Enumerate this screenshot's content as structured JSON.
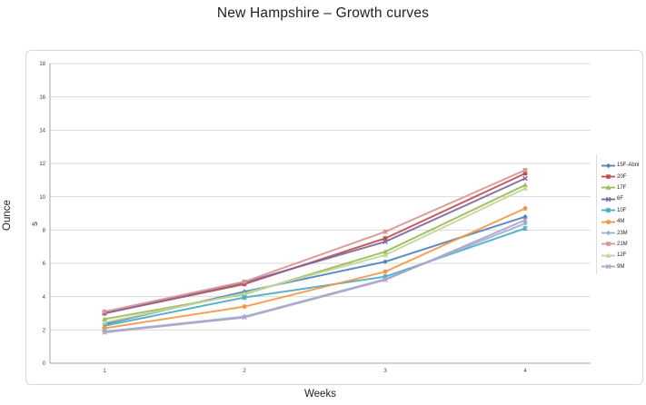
{
  "title": "New Hampshire – Growth curves",
  "chart_data": {
    "type": "line",
    "title": "New Hampshire – Growth curves",
    "xlabel": "Weeks",
    "ylabel": "Ounce",
    "ylabel_overlap_glyph": "s",
    "x": [
      1,
      2,
      3,
      4
    ],
    "ylim": [
      0,
      18
    ],
    "ytick_step": 2,
    "grid": true,
    "legend_position": "right",
    "series": [
      {
        "name": "15F-Abnl",
        "color": "#4F81BD",
        "marker": "diamond",
        "values": [
          2.35,
          4.3,
          6.1,
          8.8
        ]
      },
      {
        "name": "20F",
        "color": "#C0504D",
        "marker": "square",
        "values": [
          3.0,
          4.75,
          7.5,
          11.4
        ]
      },
      {
        "name": "17F",
        "color": "#9BBB59",
        "marker": "triangle",
        "values": [
          2.65,
          4.15,
          6.7,
          10.7
        ]
      },
      {
        "name": "6F",
        "color": "#8064A2",
        "marker": "x",
        "values": [
          3.0,
          4.85,
          7.3,
          11.1
        ]
      },
      {
        "name": "10F",
        "color": "#4BACC6",
        "marker": "asterisk",
        "values": [
          2.25,
          3.95,
          5.2,
          8.1
        ]
      },
      {
        "name": "4M",
        "color": "#F79646",
        "marker": "circle",
        "values": [
          2.1,
          3.4,
          5.5,
          9.3
        ]
      },
      {
        "name": "23M",
        "color": "#95B3D7",
        "marker": "diamond",
        "values": [
          1.9,
          2.8,
          5.05,
          8.4
        ]
      },
      {
        "name": "21M",
        "color": "#D99694",
        "marker": "square",
        "values": [
          3.1,
          4.9,
          7.9,
          11.6
        ]
      },
      {
        "name": "12F",
        "color": "#C3D69B",
        "marker": "triangle",
        "values": [
          2.45,
          4.2,
          6.5,
          10.5
        ]
      },
      {
        "name": "9M",
        "color": "#B2A2C7",
        "marker": "x",
        "values": [
          1.85,
          2.75,
          5.0,
          8.6
        ]
      }
    ],
    "axis_colors": {
      "grid": "#D9D9D9",
      "axis": "#A6A6A6",
      "tick_text": "#404040"
    }
  }
}
